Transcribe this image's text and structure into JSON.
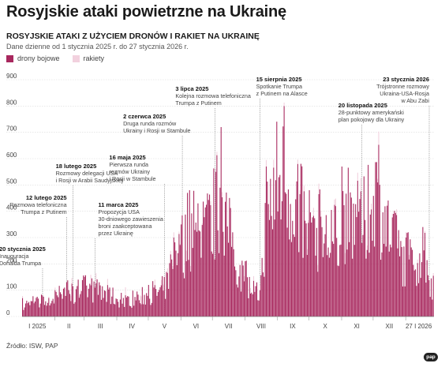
{
  "chart_data": {
    "type": "bar",
    "title": "Rosyjskie ataki powietrzne na Ukrainę",
    "subtitle": "ROSYJSKIE ATAKI Z UŻYCIEM DRONÓW I RAKIET NA UKRAINĘ",
    "date_note": "Dane dzienne od 1 stycznia 2025 r. do 27 stycznia 2026 r.",
    "source": "Źródło: ISW, PAP",
    "logo_text": "pap",
    "ylim": [
      0,
      900
    ],
    "y_ticks": [
      0,
      100,
      200,
      300,
      400,
      500,
      600,
      700,
      800,
      900
    ],
    "x_range": [
      "2025-01-01",
      "2026-01-27"
    ],
    "x_tick_labels": [
      {
        "date": "2025-01-15",
        "label": "I 2025"
      },
      {
        "date": "2025-02-14",
        "label": "II"
      },
      {
        "date": "2025-03-16",
        "label": "III"
      },
      {
        "date": "2025-04-15",
        "label": "IV"
      },
      {
        "date": "2025-05-16",
        "label": "V"
      },
      {
        "date": "2025-06-15",
        "label": "VI"
      },
      {
        "date": "2025-07-16",
        "label": "VII"
      },
      {
        "date": "2025-08-16",
        "label": "VIII"
      },
      {
        "date": "2025-09-15",
        "label": "IX"
      },
      {
        "date": "2025-10-16",
        "label": "X"
      },
      {
        "date": "2025-11-15",
        "label": "XI"
      },
      {
        "date": "2025-12-16",
        "label": "XII"
      },
      {
        "date": "2026-01-27",
        "label": "27 I 2026"
      }
    ],
    "legend": [
      {
        "name": "drony bojowe",
        "color": "#a8285e"
      },
      {
        "name": "rakiety",
        "color": "#f2d1de"
      }
    ],
    "grid": true,
    "series": [
      {
        "name": "drony bojowe",
        "color": "#a8285e",
        "points": [
          [
            "2025-01-01",
            70
          ],
          [
            "2025-01-15",
            75
          ],
          [
            "2025-01-20",
            80
          ],
          [
            "2025-02-01",
            100
          ],
          [
            "2025-02-12",
            130
          ],
          [
            "2025-02-23",
            140
          ],
          [
            "2025-03-01",
            150
          ],
          [
            "2025-03-08",
            145
          ],
          [
            "2025-03-15",
            130
          ],
          [
            "2025-03-25",
            110
          ],
          [
            "2025-04-05",
            90
          ],
          [
            "2025-04-20",
            95
          ],
          [
            "2025-05-01",
            120
          ],
          [
            "2025-05-16",
            150
          ],
          [
            "2025-05-25",
            300
          ],
          [
            "2025-06-01",
            350
          ],
          [
            "2025-06-09",
            480
          ],
          [
            "2025-06-17",
            430
          ],
          [
            "2025-07-04",
            550
          ],
          [
            "2025-07-09",
            720
          ],
          [
            "2025-07-20",
            320
          ],
          [
            "2025-08-01",
            210
          ],
          [
            "2025-08-15",
            100
          ],
          [
            "2025-08-21",
            570
          ],
          [
            "2025-09-07",
            800
          ],
          [
            "2025-09-20",
            580
          ],
          [
            "2025-10-01",
            480
          ],
          [
            "2025-10-10",
            465
          ],
          [
            "2025-10-22",
            405
          ],
          [
            "2025-11-01",
            570
          ],
          [
            "2025-11-19",
            476
          ],
          [
            "2025-12-06",
            653
          ],
          [
            "2025-12-20",
            390
          ],
          [
            "2026-01-01",
            300
          ],
          [
            "2026-01-17",
            340
          ],
          [
            "2026-01-27",
            155
          ]
        ]
      },
      {
        "name": "rakiety",
        "color": "#f2d1de",
        "points": [
          [
            "2025-01-01",
            8
          ],
          [
            "2025-02-01",
            10
          ],
          [
            "2025-03-07",
            40
          ],
          [
            "2025-04-24",
            30
          ],
          [
            "2025-05-25",
            20
          ],
          [
            "2025-06-06",
            40
          ],
          [
            "2025-07-04",
            12
          ],
          [
            "2025-07-10",
            20
          ],
          [
            "2025-08-28",
            30
          ],
          [
            "2025-09-07",
            13
          ],
          [
            "2025-10-10",
            40
          ],
          [
            "2025-11-19",
            50
          ],
          [
            "2025-12-06",
            50
          ],
          [
            "2026-01-01",
            20
          ],
          [
            "2026-01-27",
            10
          ]
        ]
      }
    ],
    "annotations": [
      {
        "date": "2025-01-20",
        "title": "20 stycznia 2025",
        "text": [
          "Inauguracja",
          "Donalda Trumpa"
        ]
      },
      {
        "date": "2025-02-12",
        "title": "12 lutego 2025",
        "text": [
          "Rozmowa telefoniczna",
          "Trumpa z Putinem"
        ]
      },
      {
        "date": "2025-02-18",
        "title": "18 lutego 2025",
        "text": [
          "Rozmowy delegacji USA",
          "i Rosji w Arabii Saudyjskiej"
        ]
      },
      {
        "date": "2025-03-11",
        "title": "11 marca 2025",
        "text": [
          "Propozycja USA",
          "30-dniowego zawieszenia",
          "broni zaakceptowana",
          "przez Ukrainę"
        ]
      },
      {
        "date": "2025-05-16",
        "title": "16 maja 2025",
        "text": [
          "Pierwsza runda",
          "rozmów Ukrainy",
          "i Rosji w Stambule"
        ]
      },
      {
        "date": "2025-06-02",
        "title": "2 czerwca 2025",
        "text": [
          "Druga runda rozmów",
          "Ukrainy i Rosji w Stambule"
        ]
      },
      {
        "date": "2025-07-03",
        "title": "3 lipca 2025",
        "text": [
          "Kolejna rozmowa telefoniczna",
          "Trumpa z Putinem"
        ]
      },
      {
        "date": "2025-08-15",
        "title": "15 sierpnia 2025",
        "text": [
          "Spotkanie Trumpa",
          "z Putinem na Alasce"
        ]
      },
      {
        "date": "2025-11-20",
        "title": "20 listopada 2025",
        "text": [
          "28-punktowy amerykański",
          "plan pokojowy dla Ukrainy"
        ]
      },
      {
        "date": "2026-01-23",
        "title": "23 stycznia 2026",
        "text": [
          "Trójstronne rozmowy",
          "Ukraina-USA-Rosja",
          "w Abu Zabi"
        ]
      }
    ]
  }
}
